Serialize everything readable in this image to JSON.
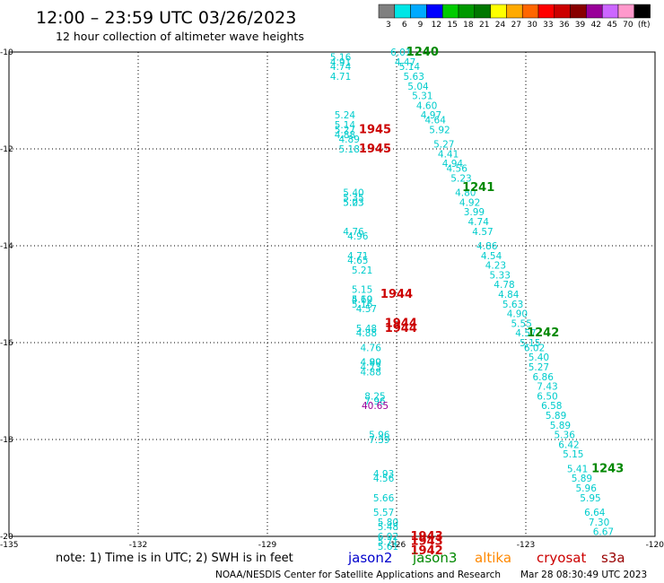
{
  "header": {
    "title": "12:00 – 23:59 UTC 03/26/2023",
    "subtitle": "12 hour collection of altimeter wave heights"
  },
  "colorbar": {
    "colors": [
      "#808080",
      "#00e6e6",
      "#00aaff",
      "#0000ff",
      "#00cc00",
      "#009900",
      "#007700",
      "#ffff00",
      "#ffaa00",
      "#ff6600",
      "#ff0000",
      "#cc0000",
      "#880000",
      "#990099",
      "#cc66ff",
      "#ff99cc",
      "#000000"
    ],
    "labels": [
      "3",
      "6",
      "9",
      "12",
      "15",
      "18",
      "21",
      "24",
      "27",
      "30",
      "33",
      "36",
      "39",
      "42",
      "45",
      "70",
      "(ft)"
    ]
  },
  "footer": {
    "note": "note:  1) Time is in UTC;  2) SWH is in feet",
    "satellites": [
      {
        "name": "jason2",
        "color": "#0000cc"
      },
      {
        "name": "jason3",
        "color": "#008800"
      },
      {
        "name": "altika",
        "color": "#ff8800"
      },
      {
        "name": "cryosat",
        "color": "#cc0000"
      },
      {
        "name": "s3a",
        "color": "#990000"
      }
    ],
    "credit": "NOAA/NESDIS Center for Satellite Applications and Research",
    "timestamp": "Mar 28 08:30:49 UTC 2023"
  },
  "chart_data": {
    "type": "scatter",
    "xlim": [
      -135,
      -120
    ],
    "ylim": [
      -20,
      -10
    ],
    "grid": true,
    "xticks": [
      {
        "v": -135,
        "label": "-135"
      },
      {
        "v": -132,
        "label": "-132"
      },
      {
        "v": -129,
        "label": "-129"
      },
      {
        "v": -126,
        "label": "-126"
      },
      {
        "v": -123,
        "label": "-123"
      },
      {
        "v": -120,
        "label": "-120"
      }
    ],
    "yticks": [
      {
        "v": -10,
        "label": "-10"
      },
      {
        "v": -12,
        "label": "-12"
      },
      {
        "v": -14,
        "label": "-14"
      },
      {
        "v": -16,
        "label": "-16"
      },
      {
        "v": -18,
        "label": "-18"
      },
      {
        "v": -20,
        "label": "-20"
      }
    ],
    "series": [
      {
        "color": "#00cccc",
        "points": [
          {
            "x": -127.3,
            "y": -10.1,
            "label": "5.16"
          },
          {
            "x": -127.3,
            "y": -10.2,
            "label": "4.91"
          },
          {
            "x": -127.3,
            "y": -10.3,
            "label": "4.74"
          },
          {
            "x": -127.3,
            "y": -10.5,
            "label": "4.71"
          },
          {
            "x": -127.2,
            "y": -11.3,
            "label": "5.24"
          },
          {
            "x": -127.2,
            "y": -11.5,
            "label": "5.14"
          },
          {
            "x": -127.2,
            "y": -11.6,
            "label": "5.27"
          },
          {
            "x": -127.2,
            "y": -11.7,
            "label": "4.88"
          },
          {
            "x": -127.1,
            "y": -11.8,
            "label": "4.89"
          },
          {
            "x": -127.1,
            "y": -12.0,
            "label": "5.18"
          },
          {
            "x": -127.0,
            "y": -12.9,
            "label": "5.40"
          },
          {
            "x": -127.0,
            "y": -13.0,
            "label": "5.35"
          },
          {
            "x": -127.0,
            "y": -13.1,
            "label": "5.23"
          },
          {
            "x": -127.0,
            "y": -13.1,
            "label": "5.03"
          },
          {
            "x": -127.0,
            "y": -13.7,
            "label": "4.76"
          },
          {
            "x": -126.9,
            "y": -13.8,
            "label": "4.96"
          },
          {
            "x": -126.9,
            "y": -14.2,
            "label": "4.71"
          },
          {
            "x": -126.9,
            "y": -14.3,
            "label": "4.65"
          },
          {
            "x": -126.8,
            "y": -14.5,
            "label": "5.21"
          },
          {
            "x": -126.8,
            "y": -14.9,
            "label": "5.15"
          },
          {
            "x": -126.8,
            "y": -15.1,
            "label": "4.60"
          },
          {
            "x": -126.8,
            "y": -15.1,
            "label": "5.19"
          },
          {
            "x": -126.8,
            "y": -15.2,
            "label": "5.16"
          },
          {
            "x": -126.7,
            "y": -15.3,
            "label": "4.57"
          },
          {
            "x": -126.7,
            "y": -15.7,
            "label": "5.48"
          },
          {
            "x": -126.7,
            "y": -15.8,
            "label": "4.88"
          },
          {
            "x": -126.6,
            "y": -16.1,
            "label": "4.76"
          },
          {
            "x": -126.6,
            "y": -16.4,
            "label": "4.90"
          },
          {
            "x": -126.6,
            "y": -16.4,
            "label": "4.89"
          },
          {
            "x": -126.6,
            "y": -16.5,
            "label": "4.73"
          },
          {
            "x": -126.6,
            "y": -16.6,
            "label": "4.88"
          },
          {
            "x": -126.5,
            "y": -17.1,
            "label": "8.25"
          },
          {
            "x": -126.5,
            "y": -17.2,
            "label": "7.96"
          },
          {
            "x": -126.4,
            "y": -17.9,
            "label": "5.96"
          },
          {
            "x": -126.4,
            "y": -18.0,
            "label": "7.39"
          },
          {
            "x": -126.3,
            "y": -18.7,
            "label": "4.93"
          },
          {
            "x": -126.3,
            "y": -18.8,
            "label": "4.56"
          },
          {
            "x": -126.3,
            "y": -19.2,
            "label": "5.66"
          },
          {
            "x": -126.3,
            "y": -19.5,
            "label": "5.57"
          },
          {
            "x": -126.2,
            "y": -19.7,
            "label": "5.80"
          },
          {
            "x": -126.2,
            "y": -19.8,
            "label": "5.48"
          },
          {
            "x": -126.2,
            "y": -20.0,
            "label": "6.92"
          },
          {
            "x": -126.2,
            "y": -20.1,
            "label": "5.71"
          },
          {
            "x": -126.2,
            "y": -20.2,
            "label": "5.61"
          },
          {
            "x": -125.9,
            "y": -10.0,
            "label": "6.01"
          },
          {
            "x": -125.8,
            "y": -10.2,
            "label": "4.47"
          },
          {
            "x": -125.7,
            "y": -10.3,
            "label": "5.14"
          },
          {
            "x": -125.6,
            "y": -10.5,
            "label": "5.63"
          },
          {
            "x": -125.5,
            "y": -10.7,
            "label": "5.04"
          },
          {
            "x": -125.4,
            "y": -10.9,
            "label": "5.31"
          },
          {
            "x": -125.3,
            "y": -11.1,
            "label": "4.60"
          },
          {
            "x": -125.2,
            "y": -11.3,
            "label": "4.97"
          },
          {
            "x": -125.1,
            "y": -11.4,
            "label": "4.64"
          },
          {
            "x": -125.0,
            "y": -11.6,
            "label": "5.92"
          },
          {
            "x": -124.9,
            "y": -11.9,
            "label": "5.27"
          },
          {
            "x": -124.8,
            "y": -12.1,
            "label": "4.41"
          },
          {
            "x": -124.7,
            "y": -12.3,
            "label": "4.94"
          },
          {
            "x": -124.6,
            "y": -12.4,
            "label": "4.56"
          },
          {
            "x": -124.5,
            "y": -12.6,
            "label": "5.23"
          },
          {
            "x": -124.4,
            "y": -12.9,
            "label": "4.80"
          },
          {
            "x": -124.3,
            "y": -13.1,
            "label": "4.92"
          },
          {
            "x": -124.2,
            "y": -13.3,
            "label": "3.99"
          },
          {
            "x": -124.1,
            "y": -13.5,
            "label": "4.74"
          },
          {
            "x": -124.0,
            "y": -13.7,
            "label": "4.57"
          },
          {
            "x": -123.9,
            "y": -14.0,
            "label": "4.86"
          },
          {
            "x": -123.8,
            "y": -14.2,
            "label": "4.54"
          },
          {
            "x": -123.7,
            "y": -14.4,
            "label": "4.23"
          },
          {
            "x": -123.6,
            "y": -14.6,
            "label": "5.33"
          },
          {
            "x": -123.5,
            "y": -14.8,
            "label": "4.78"
          },
          {
            "x": -123.4,
            "y": -15.0,
            "label": "4.84"
          },
          {
            "x": -123.3,
            "y": -15.2,
            "label": "5.63"
          },
          {
            "x": -123.2,
            "y": -15.4,
            "label": "4.90"
          },
          {
            "x": -123.1,
            "y": -15.6,
            "label": "5.55"
          },
          {
            "x": -123.0,
            "y": -15.8,
            "label": "4.57"
          },
          {
            "x": -122.9,
            "y": -16.0,
            "label": "5.15"
          },
          {
            "x": -122.8,
            "y": -16.1,
            "label": "6.02"
          },
          {
            "x": -122.7,
            "y": -16.3,
            "label": "5.40"
          },
          {
            "x": -122.7,
            "y": -16.5,
            "label": "5.27"
          },
          {
            "x": -122.6,
            "y": -16.7,
            "label": "6.86"
          },
          {
            "x": -122.5,
            "y": -16.9,
            "label": "7.43"
          },
          {
            "x": -122.5,
            "y": -17.1,
            "label": "6.50"
          },
          {
            "x": -122.4,
            "y": -17.3,
            "label": "6.58"
          },
          {
            "x": -122.3,
            "y": -17.5,
            "label": "5.89"
          },
          {
            "x": -122.2,
            "y": -17.7,
            "label": "5.89"
          },
          {
            "x": -122.1,
            "y": -17.9,
            "label": "5.36"
          },
          {
            "x": -122.0,
            "y": -18.1,
            "label": "6.42"
          },
          {
            "x": -121.9,
            "y": -18.3,
            "label": "5.15"
          },
          {
            "x": -121.8,
            "y": -18.6,
            "label": "5.41"
          },
          {
            "x": -121.7,
            "y": -18.8,
            "label": "5.89"
          },
          {
            "x": -121.6,
            "y": -19.0,
            "label": "5.96"
          },
          {
            "x": -121.5,
            "y": -19.2,
            "label": "5.95"
          },
          {
            "x": -121.4,
            "y": -19.5,
            "label": "6.64"
          },
          {
            "x": -121.3,
            "y": -19.7,
            "label": "7.30"
          },
          {
            "x": -121.2,
            "y": -19.9,
            "label": "6.67"
          }
        ]
      },
      {
        "color": "#990099",
        "points": [
          {
            "x": -126.5,
            "y": -17.3,
            "label": "40.65"
          }
        ]
      }
    ],
    "pass_labels": [
      {
        "x": -125.4,
        "y": -10.0,
        "label": "1240",
        "color": "#008800"
      },
      {
        "x": -124.1,
        "y": -12.8,
        "label": "1241",
        "color": "#008800"
      },
      {
        "x": -122.6,
        "y": -15.8,
        "label": "1242",
        "color": "#008800"
      },
      {
        "x": -121.1,
        "y": -18.6,
        "label": "1243",
        "color": "#008800"
      },
      {
        "x": -126.5,
        "y": -11.6,
        "label": "1945",
        "color": "#cc0000"
      },
      {
        "x": -126.5,
        "y": -12.0,
        "label": "1945",
        "color": "#cc0000"
      },
      {
        "x": -126.0,
        "y": -15.0,
        "label": "1944",
        "color": "#cc0000"
      },
      {
        "x": -125.9,
        "y": -15.6,
        "label": "1944",
        "color": "#cc0000"
      },
      {
        "x": -125.9,
        "y": -15.7,
        "label": "1944",
        "color": "#cc0000"
      },
      {
        "x": -125.3,
        "y": -20.0,
        "label": "1943",
        "color": "#cc0000"
      },
      {
        "x": -125.3,
        "y": -20.1,
        "label": "1943",
        "color": "#cc0000"
      },
      {
        "x": -125.3,
        "y": -20.3,
        "label": "1942",
        "color": "#cc0000"
      }
    ]
  }
}
